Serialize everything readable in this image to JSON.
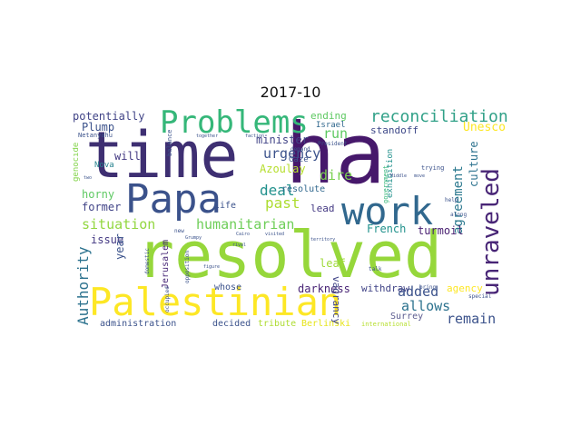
{
  "figure": {
    "title": "2017-10"
  },
  "wordcloud": {
    "words": [
      {
        "text": "time",
        "color": "#3e2f72"
      },
      {
        "text": "ha",
        "color": "#46186b"
      },
      {
        "text": "resolved",
        "color": "#96d73b"
      },
      {
        "text": "Palestinian",
        "color": "#fde725"
      },
      {
        "text": "Papa",
        "color": "#3b528b"
      },
      {
        "text": "work",
        "color": "#31688e"
      },
      {
        "text": "Problems",
        "color": "#35b779"
      },
      {
        "text": "unraveled",
        "color": "#482576"
      },
      {
        "text": "reconciliation",
        "color": "#31a188"
      },
      {
        "text": "humanitarian",
        "color": "#6ece58"
      },
      {
        "text": "situation",
        "color": "#93d741"
      },
      {
        "text": "Authority",
        "color": "#2c728e"
      },
      {
        "text": "allows",
        "color": "#2c728e"
      },
      {
        "text": "remain",
        "color": "#3b528b"
      },
      {
        "text": "agreement",
        "color": "#2a788e"
      },
      {
        "text": "deal",
        "color": "#21918c"
      },
      {
        "text": "past",
        "color": "#addc30"
      },
      {
        "text": "urgency",
        "color": "#3b528b"
      },
      {
        "text": "dire",
        "color": "#7ad151"
      },
      {
        "text": "run",
        "color": "#5ec962"
      },
      {
        "text": "added",
        "color": "#3b528b"
      },
      {
        "text": "potentially",
        "color": "#414487"
      },
      {
        "text": "Plump",
        "color": "#3b528b"
      },
      {
        "text": "ending",
        "color": "#5ec962"
      },
      {
        "text": "Israel",
        "color": "#31688e"
      },
      {
        "text": "standoff",
        "color": "#3e4989"
      },
      {
        "text": "Unesco",
        "color": "#fde725"
      },
      {
        "text": "culture",
        "color": "#2c728e"
      },
      {
        "text": "minister",
        "color": "#414487"
      },
      {
        "text": "Azoulay",
        "color": "#b5de2b"
      },
      {
        "text": "will",
        "color": "#443a83"
      },
      {
        "text": "Nova",
        "color": "#26828e"
      },
      {
        "text": "horny",
        "color": "#5ec962"
      },
      {
        "text": "former",
        "color": "#414487"
      },
      {
        "text": "issue",
        "color": "#443983"
      },
      {
        "text": "year",
        "color": "#3b528b"
      },
      {
        "text": "Jerusalem",
        "color": "#482878"
      },
      {
        "text": "French",
        "color": "#21918c"
      },
      {
        "text": "turmoil",
        "color": "#481f70"
      },
      {
        "text": "lead",
        "color": "#443983"
      },
      {
        "text": "resolute",
        "color": "#31688e"
      },
      {
        "text": "life",
        "color": "#3b528b"
      },
      {
        "text": "whose",
        "color": "#3b528b"
      },
      {
        "text": "darkness",
        "color": "#482475"
      },
      {
        "text": "withdraw",
        "color": "#414487"
      },
      {
        "text": "Surrey",
        "color": "#5b5b8f"
      },
      {
        "text": "agency",
        "color": "#fde725"
      },
      {
        "text": "administration",
        "color": "#3b528b"
      },
      {
        "text": "decided",
        "color": "#3b528b"
      },
      {
        "text": "tribute",
        "color": "#addc30"
      },
      {
        "text": "Berlinski",
        "color": "#e6e419"
      },
      {
        "text": "international",
        "color": "#b5de2b"
      },
      {
        "text": "genocide",
        "color": "#84d44b"
      },
      {
        "text": "Netanyahu",
        "color": "#3b528b"
      },
      {
        "text": "balance",
        "color": "#3b528b"
      },
      {
        "text": "together",
        "color": "#3b528b"
      },
      {
        "text": "faction",
        "color": "#3b528b"
      },
      {
        "text": "President",
        "color": "#3b528b"
      },
      {
        "text": "Gaze",
        "color": "#3b528b"
      },
      {
        "text": "demand",
        "color": "#3b528b"
      },
      {
        "text": "exhibition",
        "color": "#21918c"
      },
      {
        "text": "government",
        "color": "#35b779"
      },
      {
        "text": "trying",
        "color": "#3b528b"
      },
      {
        "text": "Middle",
        "color": "#3b528b"
      },
      {
        "text": "move",
        "color": "#3b528b"
      },
      {
        "text": "help",
        "color": "#3b528b"
      },
      {
        "text": "along",
        "color": "#3b528b"
      },
      {
        "text": "leaf",
        "color": "#9fda3a"
      },
      {
        "text": "vagrancy",
        "color": "#414487"
      },
      {
        "text": "talk",
        "color": "#3b528b"
      },
      {
        "text": "bring",
        "color": "#3b528b"
      },
      {
        "text": "special",
        "color": "#3b528b"
      },
      {
        "text": "occupied",
        "color": "#3b528b"
      },
      {
        "text": "domestic",
        "color": "#3b528b"
      },
      {
        "text": "opposition",
        "color": "#3b528b"
      },
      {
        "text": "rival",
        "color": "#3b528b"
      },
      {
        "text": "figure",
        "color": "#3b528b"
      },
      {
        "text": "territory",
        "color": "#3b528b"
      },
      {
        "text": "new",
        "color": "#3b528b"
      },
      {
        "text": "Grumpy",
        "color": "#3b528b"
      },
      {
        "text": "Cairo",
        "color": "#3b528b"
      },
      {
        "text": "visited",
        "color": "#3b528b"
      },
      {
        "text": "two",
        "color": "#3b528b"
      }
    ]
  }
}
